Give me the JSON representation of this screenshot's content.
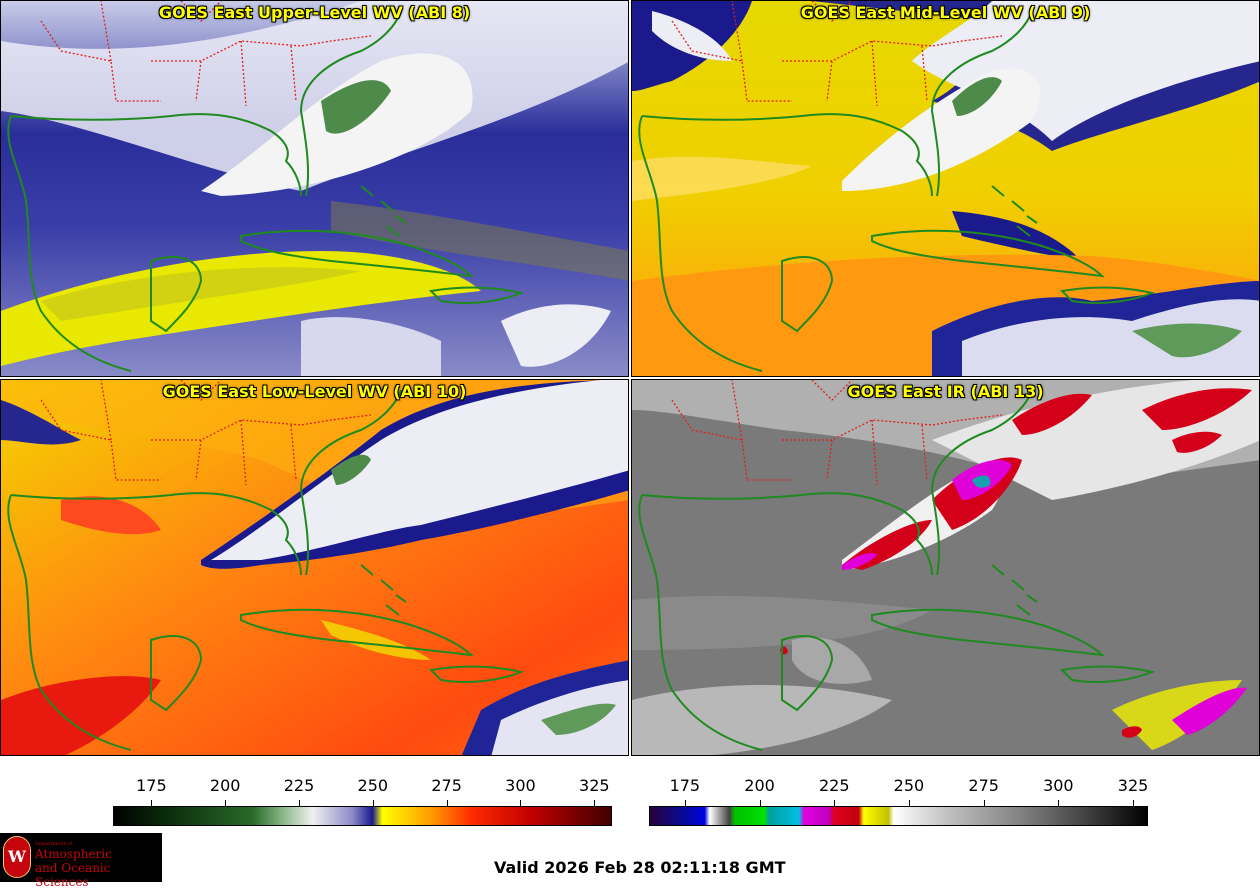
{
  "panels": [
    {
      "title": "GOES East Upper-Level WV (ABI 8)",
      "colorbar": "wv"
    },
    {
      "title": "GOES East Mid-Level WV (ABI 9)",
      "colorbar": "wv"
    },
    {
      "title": "GOES East Low-Level WV (ABI 10)",
      "colorbar": "wv"
    },
    {
      "title": "GOES East IR (ABI 13)",
      "colorbar": "ir"
    }
  ],
  "colorbars": {
    "wv": {
      "ticks": [
        "175",
        "200",
        "225",
        "250",
        "275",
        "300",
        "325"
      ],
      "tick_values": [
        175,
        200,
        225,
        250,
        275,
        300,
        325
      ],
      "min": 162,
      "max": 331
    },
    "ir": {
      "ticks": [
        "175",
        "200",
        "225",
        "250",
        "275",
        "300",
        "325"
      ],
      "tick_values": [
        175,
        200,
        225,
        250,
        275,
        300,
        325
      ],
      "min": 163,
      "max": 330
    }
  },
  "logo": {
    "dept": "Department of",
    "line1": "Atmospheric",
    "line2": "and Oceanic Sciences",
    "seal_letter": "W"
  },
  "valid_text": "Valid 2026 Feb 28 02:11:18 GMT",
  "colors": {
    "title_text": "#ffff00",
    "coastline": "#1f8a1f",
    "state_border": "#e0201c",
    "wv_dry": "#ffd400",
    "wv_moist": "#1a1a8c",
    "ir_warm": "#7a7a7a",
    "ir_cold": "#ff00ff"
  }
}
